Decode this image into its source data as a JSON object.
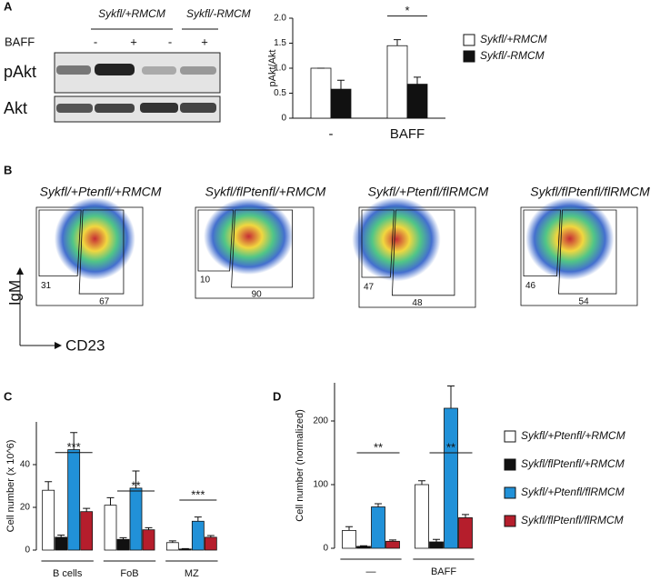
{
  "panels": [
    "A",
    "B",
    "C",
    "D"
  ],
  "blot": {
    "groups": [
      "Sykfl/+RMCM",
      "Sykfl/-RMCM"
    ],
    "row_label": "BAFF",
    "lanes": [
      "-",
      "+",
      "-",
      "+"
    ],
    "bands": [
      "pAkt",
      "Akt"
    ]
  },
  "chart_data": [
    {
      "type": "bar",
      "ylabel": "pAkt/Akt",
      "categories": [
        "-",
        "BAFF"
      ],
      "series": [
        {
          "name": "Sykfl/+RMCM",
          "color": "#ffffff",
          "values": [
            1.0,
            1.45
          ],
          "errors": [
            0,
            0.12
          ]
        },
        {
          "name": "Sykfl/-RMCM",
          "color": "#111111",
          "values": [
            0.58,
            0.68
          ],
          "errors": [
            0.18,
            0.14
          ]
        }
      ],
      "significance": [
        null,
        "*"
      ],
      "ylim": [
        0,
        2
      ],
      "yticks": [
        0,
        0.5,
        {
          "value": 1,
          "label": "1.0"
        },
        1.5,
        {
          "value": 2,
          "label": "2.0"
        }
      ]
    },
    {
      "type": "flow",
      "xlabel": "CD23",
      "ylabel": "IgM",
      "plots": [
        {
          "title": "Sykfl/+Ptenfl/+RMCM",
          "gates": [
            31,
            67
          ]
        },
        {
          "title": "Sykfl/flPtenfl/+RMCM",
          "gates": [
            10,
            90
          ]
        },
        {
          "title": "Sykfl/+Ptenfl/flRMCM",
          "gates": [
            47,
            48
          ]
        },
        {
          "title": "Sykfl/flPtenfl/flRMCM",
          "gates": [
            46,
            54
          ]
        }
      ]
    },
    {
      "type": "bar",
      "ylabel": "Cell number (x 10^6)",
      "categories": [
        "B cells",
        "FoB",
        "MZ"
      ],
      "series": [
        {
          "color": "#ffffff",
          "values": [
            28,
            21,
            3.5
          ],
          "errors": [
            4,
            3.5,
            0.8
          ]
        },
        {
          "color": "#111111",
          "values": [
            6,
            5,
            0.5
          ],
          "errors": [
            1,
            0.8,
            0.2
          ]
        },
        {
          "color": "#2191d8",
          "values": [
            47,
            29,
            13.5
          ],
          "errors": [
            8,
            8,
            2
          ]
        },
        {
          "color": "#b51e2c",
          "values": [
            18,
            9.5,
            6
          ],
          "errors": [
            1.5,
            1,
            0.8
          ]
        }
      ],
      "significance": [
        "***",
        "**",
        "***"
      ],
      "ylim": [
        0,
        60
      ],
      "yticks": [
        0,
        20,
        40
      ]
    },
    {
      "type": "bar",
      "ylabel": "Cell number (normalized)",
      "categories": [
        "—",
        "BAFF"
      ],
      "series": [
        {
          "name": "Sykfl/+Ptenfl/+RMCM",
          "color": "#ffffff",
          "values": [
            28,
            100
          ],
          "errors": [
            6,
            6
          ]
        },
        {
          "name": "Sykfl/flPtenfl/+RMCM",
          "color": "#111111",
          "values": [
            3,
            10
          ],
          "errors": [
            1,
            4
          ]
        },
        {
          "name": "Sykfl/+Ptenfl/flRMCM",
          "color": "#2191d8",
          "values": [
            65,
            220
          ],
          "errors": [
            5,
            35
          ]
        },
        {
          "name": "Sykfl/flPtenfl/flRMCM",
          "color": "#b51e2c",
          "values": [
            11,
            48
          ],
          "errors": [
            2,
            5
          ]
        }
      ],
      "significance": [
        "**",
        "**"
      ],
      "ylim": [
        0,
        260
      ],
      "yticks": [
        0,
        100,
        200
      ]
    }
  ]
}
